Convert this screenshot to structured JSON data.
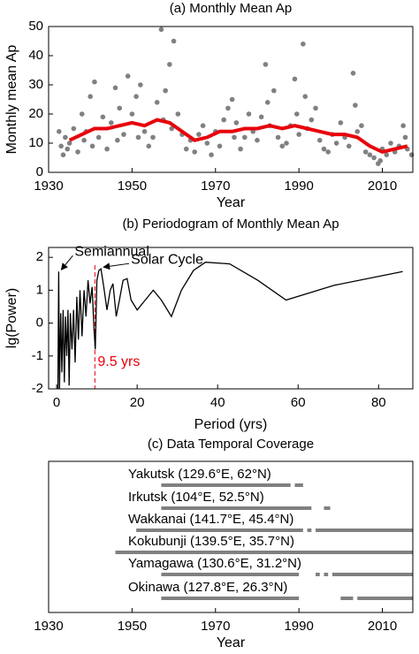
{
  "chart_data": [
    {
      "type": "scatter",
      "title": "(a) Monthly Mean Ap",
      "xlabel": "Year",
      "ylabel": "Monthly mean Ap",
      "xlim": [
        1930,
        2017.3
      ],
      "ylim": [
        0,
        50
      ],
      "xticks": [
        1930,
        1950,
        1970,
        1990,
        2010
      ],
      "yticks": [
        0,
        10,
        20,
        30,
        40,
        50
      ],
      "series": [
        {
          "mode": "points",
          "color": "#808080",
          "x": [
            1932.5,
            1933,
            1933.5,
            1934,
            1934.5,
            1935,
            1936,
            1937,
            1938,
            1938.5,
            1939,
            1940,
            1940.5,
            1941,
            1942,
            1943,
            1944,
            1945,
            1946,
            1946.5,
            1947,
            1948,
            1949,
            1950,
            1951,
            1951.5,
            1952,
            1953,
            1954,
            1955,
            1956,
            1957,
            1957.5,
            1958,
            1959,
            1959.5,
            1960,
            1961,
            1962,
            1963,
            1964,
            1965,
            1966,
            1967,
            1968,
            1969,
            1970,
            1971,
            1972,
            1973,
            1974,
            1974.5,
            1975,
            1976,
            1977,
            1978,
            1979,
            1980,
            1981,
            1982,
            1982.5,
            1983,
            1984,
            1985,
            1986,
            1987,
            1988,
            1989,
            1989.5,
            1990,
            1991,
            1991.5,
            1992,
            1993,
            1994,
            1995,
            1996,
            1997,
            1998,
            1999,
            2000,
            2001,
            2002,
            2003,
            2003.5,
            2004,
            2005,
            2006,
            2007,
            2008,
            2009,
            2009.5,
            2010,
            2011,
            2012,
            2013,
            2014,
            2015,
            2015.5,
            2016,
            2017
          ],
          "y": [
            14,
            9,
            6,
            12,
            8,
            10,
            15,
            7,
            20,
            11,
            14,
            26,
            9,
            31,
            12,
            19,
            8,
            17,
            29,
            11,
            22,
            13,
            33,
            20,
            26,
            12,
            30,
            14,
            9,
            12,
            24,
            49,
            18,
            28,
            37,
            15,
            45,
            20,
            13,
            8,
            11,
            7,
            13,
            16,
            10,
            6,
            14,
            9,
            18,
            22,
            25,
            12,
            17,
            8,
            12,
            20,
            14,
            11,
            19,
            37,
            24,
            16,
            28,
            12,
            9,
            10,
            16,
            32,
            20,
            13,
            44,
            26,
            15,
            18,
            22,
            11,
            8,
            7,
            13,
            10,
            17,
            12,
            9,
            34,
            23,
            14,
            16,
            7,
            6,
            5,
            3,
            4,
            8,
            6,
            10,
            7,
            9,
            16,
            12,
            8,
            6
          ]
        },
        {
          "mode": "line",
          "color": "#e8000b",
          "x": [
            1935,
            1938,
            1941,
            1944,
            1947,
            1950,
            1953,
            1956,
            1959,
            1962,
            1965,
            1968,
            1971,
            1974,
            1977,
            1980,
            1983,
            1986,
            1989,
            1992,
            1995,
            1998,
            2001,
            2004,
            2007,
            2010,
            2013,
            2016
          ],
          "y": [
            11,
            13,
            15,
            15,
            16,
            17,
            16,
            18,
            17,
            14,
            11,
            12,
            14,
            14,
            15,
            15,
            16,
            15,
            16,
            15,
            14,
            13,
            13,
            12,
            9,
            7,
            8,
            9
          ]
        }
      ]
    },
    {
      "type": "line",
      "title": "(b) Periodogram of Monthly Mean Ap",
      "xlabel": "Period (yrs)",
      "ylabel": "lg(Power)",
      "xlim": [
        -2,
        88.5
      ],
      "ylim": [
        -2,
        2.3
      ],
      "xticks": [
        0,
        20,
        40,
        60,
        80
      ],
      "yticks": [
        -2,
        -1,
        0,
        1,
        2
      ],
      "series": [
        {
          "color": "#000000",
          "x": [
            0.3,
            0.5,
            0.7,
            1,
            1.3,
            1.6,
            1.9,
            2.2,
            2.5,
            2.8,
            3.1,
            3.4,
            3.8,
            4.2,
            4.6,
            5,
            5.4,
            5.8,
            6.3,
            6.8,
            7.3,
            7.8,
            8.3,
            8.8,
            9.3,
            9.6,
            10,
            10.5,
            11,
            11.7,
            12.5,
            13.3,
            14,
            14.8,
            15.6,
            16.5,
            17.5,
            18.5,
            20,
            22,
            24,
            26,
            28.5,
            31,
            34,
            37,
            43,
            50,
            57,
            69,
            86
          ],
          "y": [
            -2,
            1.57,
            -2,
            0.3,
            -1.5,
            0.4,
            -1.8,
            0.2,
            -1,
            0.4,
            -1.9,
            0.3,
            -0.8,
            0.4,
            -1.2,
            0.8,
            -0.5,
            1,
            -0.4,
            1,
            0.2,
            1.3,
            0.6,
            1.1,
            -0.2,
            -0.8,
            1.3,
            1.6,
            1.65,
            1.1,
            0.4,
            1,
            1.2,
            0.2,
            0.7,
            1.3,
            1.35,
            0.7,
            0.4,
            0.7,
            1,
            0.7,
            0.2,
            1,
            1.6,
            1.85,
            1.8,
            1.3,
            0.7,
            1.15,
            1.57
          ]
        }
      ],
      "annotations": [
        {
          "text": "Semiannual",
          "x": 0.5,
          "y": 1.57
        },
        {
          "text": "Solar Cycle",
          "x": 11,
          "y": 1.65
        }
      ],
      "marker": {
        "x": 9.5,
        "label": "9.5 yrs",
        "color": "#e8000b"
      }
    },
    {
      "type": "timeline",
      "title": "(c) Data Temporal Coverage",
      "xlabel": "Year",
      "xlim": [
        1930,
        2017.3
      ],
      "xticks": [
        1930,
        1950,
        1970,
        1990,
        2010
      ],
      "color": "#808080",
      "rows": [
        {
          "label": "Yakutsk (129.6°E, 62°N)",
          "segments": [
            [
              1957,
              1988
            ],
            [
              1989,
              1991
            ]
          ]
        },
        {
          "label": "Irkutsk (104°E, 52.5°N)",
          "segments": [
            [
              1957,
              1993
            ],
            [
              1996,
              1997.5
            ]
          ]
        },
        {
          "label": "Wakkanai (141.7°E, 45.4°N)",
          "segments": [
            [
              1951,
              1991
            ],
            [
              1992,
              1993
            ],
            [
              1994,
              2017.3
            ]
          ]
        },
        {
          "label": "Kokubunji (139.5°E, 35.7°N)",
          "segments": [
            [
              1946,
              2017.3
            ]
          ]
        },
        {
          "label": "Yamagawa (130.6°E, 31.2°N)",
          "segments": [
            [
              1957,
              1990
            ],
            [
              1994,
              1995
            ],
            [
              1996,
              1997
            ],
            [
              1998,
              2017.3
            ]
          ]
        },
        {
          "label": "Okinawa (127.8°E, 26.3°N)",
          "segments": [
            [
              1957,
              1990
            ],
            [
              2000,
              2003
            ],
            [
              2004,
              2017.3
            ]
          ]
        }
      ]
    }
  ]
}
